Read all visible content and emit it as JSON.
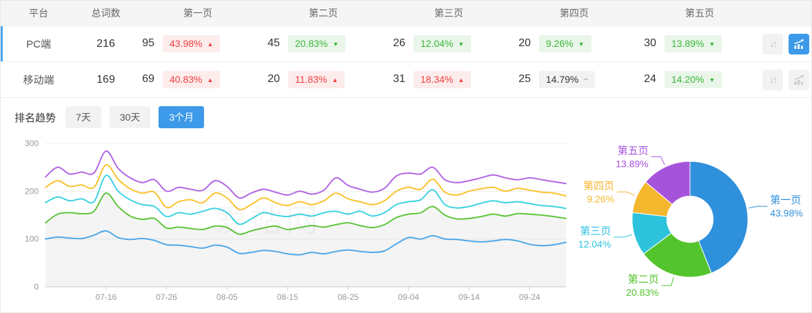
{
  "colors": {
    "accent": "#3d9ae8",
    "row_indicator": "#4aa7ee",
    "badge_red_text": "#f23d3d",
    "badge_red_bg": "#fdecec",
    "badge_green_text": "#3cb63c",
    "badge_green_bg": "#e9f6e9",
    "badge_gray_bg": "#f2f2f2",
    "axis_text": "#999999",
    "grid_line": "#eeeeee"
  },
  "table": {
    "headers": [
      "平台",
      "总词数",
      "第一页",
      "第二页",
      "第三页",
      "第四页",
      "第五页"
    ],
    "rows": [
      {
        "platform": "PC端",
        "total": "216",
        "row_state": "active",
        "chart_state": "on",
        "pages": [
          {
            "count": "95",
            "pct": "43.98%",
            "arrow": "▲",
            "tone": "red"
          },
          {
            "count": "45",
            "pct": "20.83%",
            "arrow": "▼",
            "tone": "green"
          },
          {
            "count": "26",
            "pct": "12.04%",
            "arrow": "▼",
            "tone": "green"
          },
          {
            "count": "20",
            "pct": "9.26%",
            "arrow": "▼",
            "tone": "green"
          },
          {
            "count": "30",
            "pct": "13.89%",
            "arrow": "▼",
            "tone": "green"
          }
        ]
      },
      {
        "platform": "移动端",
        "total": "169",
        "row_state": "",
        "chart_state": "off",
        "pages": [
          {
            "count": "69",
            "pct": "40.83%",
            "arrow": "▲",
            "tone": "red"
          },
          {
            "count": "20",
            "pct": "11.83%",
            "arrow": "▲",
            "tone": "red"
          },
          {
            "count": "31",
            "pct": "18.34%",
            "arrow": "▲",
            "tone": "red"
          },
          {
            "count": "25",
            "pct": "14.79%",
            "arrow": "–",
            "tone": "gray"
          },
          {
            "count": "24",
            "pct": "14.20%",
            "arrow": "▼",
            "tone": "green"
          }
        ]
      }
    ]
  },
  "trend": {
    "label": "排名趋势",
    "ranges": [
      {
        "label": "7天",
        "state": ""
      },
      {
        "label": "30天",
        "state": ""
      },
      {
        "label": "3个月",
        "state": "active"
      }
    ]
  },
  "watermark": "爱站网",
  "chart_data": [
    {
      "type": "line",
      "title": "排名趋势",
      "xlabel": "",
      "ylabel": "",
      "ylim": [
        0,
        300
      ],
      "yticks": [
        0,
        100,
        200,
        300
      ],
      "grid": true,
      "legend": false,
      "x_tick_labels": [
        "07-16",
        "07-26",
        "08-05",
        "08-15",
        "08-25",
        "09-04",
        "09-14",
        "09-24"
      ],
      "x_tick_index": [
        5,
        10,
        15,
        20,
        25,
        30,
        35,
        40
      ],
      "series": [
        {
          "name": "第一页",
          "color": "#4fa8e8",
          "area": false,
          "values": [
            100,
            104,
            102,
            101,
            108,
            117,
            103,
            99,
            101,
            97,
            88,
            87,
            84,
            81,
            87,
            83,
            70,
            72,
            76,
            74,
            69,
            67,
            72,
            69,
            74,
            77,
            74,
            72,
            75,
            90,
            103,
            100,
            107,
            100,
            99,
            96,
            94,
            96,
            99,
            96,
            89,
            86,
            88,
            93
          ]
        },
        {
          "name": "第二页",
          "color": "#5fc53c",
          "area": true,
          "values": [
            134,
            152,
            155,
            153,
            158,
            196,
            168,
            148,
            141,
            143,
            123,
            125,
            122,
            120,
            127,
            124,
            110,
            117,
            123,
            127,
            120,
            124,
            128,
            125,
            130,
            134,
            128,
            124,
            130,
            145,
            152,
            155,
            168,
            150,
            142,
            143,
            147,
            152,
            148,
            153,
            152,
            150,
            147,
            143
          ]
        },
        {
          "name": "第三页",
          "color": "#3fd2e2",
          "area": false,
          "values": [
            176,
            188,
            180,
            184,
            178,
            233,
            200,
            182,
            172,
            168,
            147,
            155,
            152,
            158,
            164,
            155,
            131,
            142,
            155,
            150,
            147,
            152,
            148,
            155,
            158,
            152,
            158,
            148,
            155,
            172,
            178,
            182,
            203,
            172,
            165,
            168,
            175,
            180,
            176,
            178,
            174,
            170,
            168,
            164
          ]
        },
        {
          "name": "第四页",
          "color": "#f9c32f",
          "area": false,
          "values": [
            208,
            222,
            210,
            213,
            208,
            255,
            225,
            205,
            196,
            198,
            166,
            178,
            182,
            176,
            196,
            186,
            162,
            172,
            186,
            176,
            170,
            178,
            172,
            180,
            196,
            184,
            178,
            172,
            180,
            200,
            208,
            204,
            225,
            198,
            192,
            200,
            205,
            208,
            200,
            206,
            202,
            198,
            196,
            190
          ]
        },
        {
          "name": "第五页",
          "color": "#b266e3",
          "area": false,
          "values": [
            230,
            250,
            236,
            240,
            238,
            284,
            248,
            228,
            218,
            224,
            200,
            208,
            204,
            202,
            222,
            210,
            186,
            196,
            204,
            198,
            192,
            200,
            194,
            202,
            228,
            212,
            204,
            198,
            206,
            232,
            238,
            236,
            250,
            224,
            218,
            222,
            228,
            234,
            228,
            224,
            228,
            224,
            220,
            216
          ]
        }
      ]
    },
    {
      "type": "donut",
      "inner_radius_ratio": 0.4,
      "slices": [
        {
          "label": "第一页",
          "value": 43.98,
          "display": "43.98%",
          "color": "#2f90dc"
        },
        {
          "label": "第二页",
          "value": 20.83,
          "display": "20.83%",
          "color": "#53c42d"
        },
        {
          "label": "第三页",
          "value": 12.04,
          "display": "12.04%",
          "color": "#2ec3dc"
        },
        {
          "label": "第四页",
          "value": 9.26,
          "display": "9.26%",
          "color": "#f5b72e"
        },
        {
          "label": "第五页",
          "value": 13.89,
          "display": "13.89%",
          "color": "#a653db"
        }
      ]
    }
  ]
}
